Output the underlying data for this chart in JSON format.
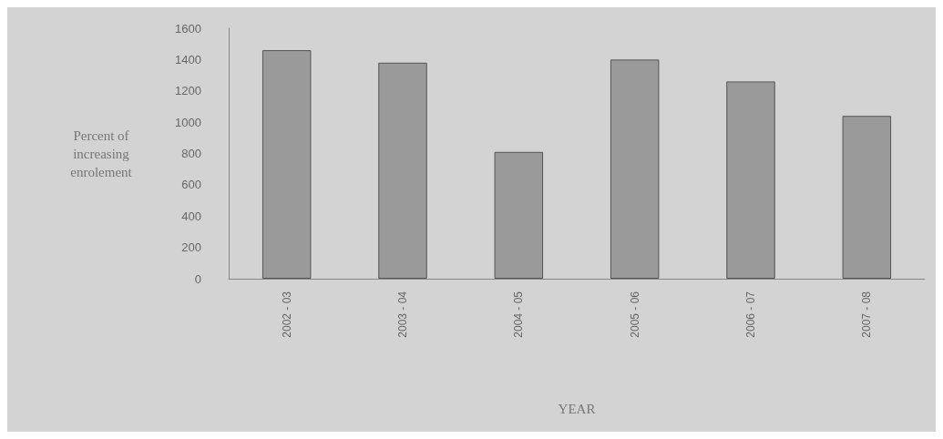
{
  "chart_data": {
    "type": "bar",
    "xlabel": "YEAR",
    "ylabel": "Percent of\nincreasing\nenrolement",
    "categories": [
      "2002 - 03",
      "2003 - 04",
      "2004 - 05",
      "2005 - 06",
      "2006 - 07",
      "2007 - 08"
    ],
    "values": [
      1460,
      1380,
      810,
      1400,
      1260,
      1040
    ],
    "color": "#9a9a9a",
    "ylim": [
      0,
      1600
    ],
    "yticks": [
      0,
      200,
      400,
      600,
      800,
      1000,
      1200,
      1400,
      1600
    ],
    "grid": false
  }
}
